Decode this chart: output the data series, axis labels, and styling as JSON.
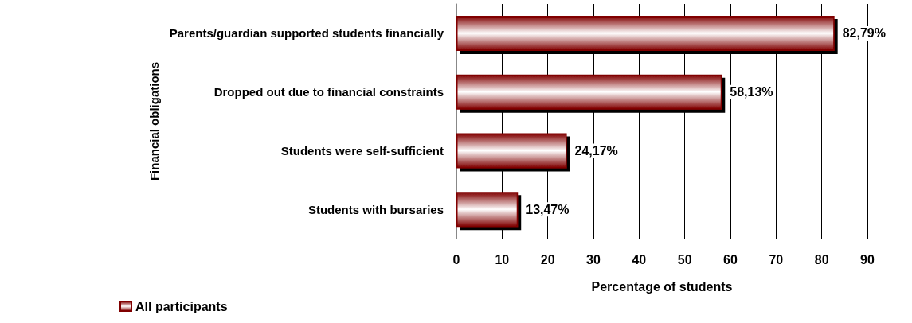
{
  "chart_data": {
    "type": "bar",
    "orientation": "horizontal",
    "xlabel": "Percentage of students",
    "ylabel": "Financial obligations",
    "categories": [
      "Parents/guardian supported students financially",
      "Dropped out due to financial constraints",
      "Students were self-sufficient",
      "Students with bursaries"
    ],
    "series": [
      {
        "name": "All participants",
        "color": "#800000",
        "values": [
          82.79,
          58.13,
          24.17,
          13.47
        ],
        "value_labels": [
          "82,79%",
          "58,13%",
          "24,17%",
          "13,47%"
        ]
      }
    ],
    "xlim": [
      0,
      90
    ],
    "xticks": [
      0,
      10,
      20,
      30,
      40,
      50,
      60,
      70,
      80,
      90
    ],
    "grid": "x",
    "legend": "bottom left"
  }
}
